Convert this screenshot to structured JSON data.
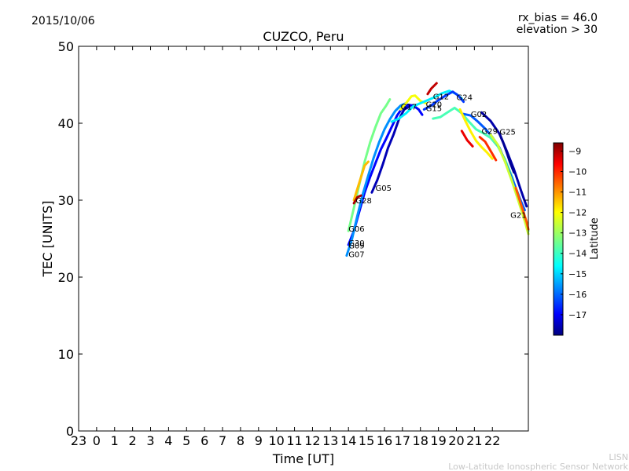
{
  "header": {
    "date": "2015/10/06",
    "rx_bias": "rx_bias = 46.0",
    "elevation": "elevation > 30"
  },
  "credit": {
    "line1": "LISN",
    "line2": "Low-Latitude Ionospheric Sensor Network"
  },
  "chart_data": {
    "type": "scatter",
    "title": "CUZCO, Peru",
    "xlabel": "Time [UT]",
    "ylabel": "TEC [UNITS]",
    "x_tick_labels": [
      "23",
      "0",
      "1",
      "2",
      "3",
      "4",
      "5",
      "6",
      "7",
      "8",
      "9",
      "10",
      "11",
      "12",
      "13",
      "14",
      "15",
      "16",
      "17",
      "18",
      "19",
      "20",
      "21",
      "22"
    ],
    "xlim": [
      -1,
      24
    ],
    "ylim": [
      0,
      50
    ],
    "y_ticks": [
      0,
      10,
      20,
      30,
      40,
      50
    ],
    "grid": false,
    "colorbar": {
      "label": "Latitude",
      "range": [
        -18,
        -8.6
      ],
      "ticks": [
        -9,
        -10,
        -11,
        -12,
        -13,
        -14,
        -15,
        -16,
        -17
      ],
      "colormap": "jet"
    },
    "satellite_labels": [
      {
        "name": "G12",
        "x": 18.7,
        "y": 43.1
      },
      {
        "name": "G24",
        "x": 20.0,
        "y": 43.0
      },
      {
        "name": "G17",
        "x": 16.9,
        "y": 41.8
      },
      {
        "name": "G20",
        "x": 18.3,
        "y": 42.1
      },
      {
        "name": "G15",
        "x": 18.3,
        "y": 41.6
      },
      {
        "name": "G02",
        "x": 20.8,
        "y": 40.8
      },
      {
        "name": "G29",
        "x": 21.4,
        "y": 38.6
      },
      {
        "name": "G25",
        "x": 22.4,
        "y": 38.5
      },
      {
        "name": "G05",
        "x": 15.5,
        "y": 31.2
      },
      {
        "name": "G28",
        "x": 14.4,
        "y": 29.6
      },
      {
        "name": "G06",
        "x": 14.0,
        "y": 25.9
      },
      {
        "name": "G30",
        "x": 14.0,
        "y": 24.1
      },
      {
        "name": "G09",
        "x": 14.0,
        "y": 23.7
      },
      {
        "name": "G07",
        "x": 14.0,
        "y": 22.6
      },
      {
        "name": "G21",
        "x": 23.0,
        "y": 27.7
      }
    ],
    "series": [
      {
        "lat": -16.8,
        "points": [
          [
            14.0,
            24.2
          ],
          [
            14.3,
            26.0
          ],
          [
            14.6,
            28.5
          ],
          [
            14.9,
            31.0
          ],
          [
            15.2,
            33.0
          ],
          [
            15.5,
            34.8
          ],
          [
            15.8,
            36.6
          ],
          [
            16.1,
            38.0
          ],
          [
            16.4,
            39.5
          ],
          [
            16.7,
            41.0
          ],
          [
            17.0,
            42.0
          ],
          [
            17.3,
            42.4
          ],
          [
            17.6,
            42.3
          ],
          [
            17.9,
            41.8
          ],
          [
            18.1,
            41.1
          ]
        ]
      },
      {
        "lat": -15.5,
        "points": [
          [
            13.9,
            22.8
          ],
          [
            14.2,
            25.0
          ],
          [
            14.5,
            28.0
          ],
          [
            14.8,
            30.8
          ],
          [
            15.1,
            33.2
          ],
          [
            15.4,
            35.5
          ],
          [
            15.7,
            37.5
          ],
          [
            16.0,
            39.2
          ],
          [
            16.3,
            40.5
          ],
          [
            16.6,
            41.6
          ],
          [
            16.9,
            42.3
          ],
          [
            17.2,
            42.6
          ]
        ]
      },
      {
        "lat": -13.4,
        "points": [
          [
            14.0,
            26.0
          ],
          [
            14.3,
            29.0
          ],
          [
            14.6,
            32.0
          ],
          [
            14.9,
            35.0
          ],
          [
            15.2,
            37.5
          ],
          [
            15.5,
            39.5
          ],
          [
            15.8,
            41.3
          ],
          [
            16.1,
            42.3
          ],
          [
            16.3,
            43.1
          ]
        ]
      },
      {
        "lat": -11.5,
        "points": [
          [
            14.3,
            30.0
          ],
          [
            14.5,
            31.5
          ],
          [
            14.7,
            33.0
          ],
          [
            14.9,
            34.5
          ],
          [
            15.1,
            35.0
          ]
        ]
      },
      {
        "lat": -9.0,
        "points": [
          [
            14.3,
            29.6
          ],
          [
            14.5,
            30.4
          ],
          [
            14.7,
            30.6
          ]
        ]
      },
      {
        "lat": -17.5,
        "points": [
          [
            15.3,
            31.0
          ],
          [
            15.6,
            32.6
          ],
          [
            15.9,
            34.6
          ],
          [
            16.2,
            36.8
          ],
          [
            16.5,
            38.5
          ],
          [
            16.8,
            40.5
          ],
          [
            17.1,
            41.8
          ],
          [
            17.4,
            42.2
          ]
        ]
      },
      {
        "lat": -12.2,
        "points": [
          [
            16.9,
            41.8
          ],
          [
            17.2,
            42.6
          ],
          [
            17.5,
            43.5
          ],
          [
            17.7,
            43.6
          ],
          [
            18.0,
            42.9
          ],
          [
            18.3,
            42.6
          ]
        ]
      },
      {
        "lat": -14.6,
        "points": [
          [
            16.4,
            40.2
          ],
          [
            16.8,
            40.6
          ],
          [
            17.2,
            41.3
          ],
          [
            17.6,
            42.2
          ],
          [
            18.0,
            42.6
          ],
          [
            18.4,
            43.0
          ],
          [
            18.8,
            43.4
          ],
          [
            19.2,
            43.9
          ],
          [
            19.6,
            44.2
          ],
          [
            20.0,
            43.8
          ],
          [
            20.3,
            43.2
          ]
        ]
      },
      {
        "lat": -9.2,
        "points": [
          [
            18.4,
            43.8
          ],
          [
            18.6,
            44.5
          ],
          [
            18.9,
            45.2
          ]
        ]
      },
      {
        "lat": -16.3,
        "points": [
          [
            18.2,
            41.8
          ],
          [
            18.6,
            42.3
          ],
          [
            19.0,
            43.0
          ],
          [
            19.4,
            43.6
          ],
          [
            19.8,
            44.1
          ],
          [
            20.1,
            43.6
          ],
          [
            20.4,
            42.8
          ]
        ]
      },
      {
        "lat": -13.8,
        "points": [
          [
            18.7,
            40.6
          ],
          [
            19.1,
            40.8
          ],
          [
            19.5,
            41.4
          ],
          [
            19.9,
            42.0
          ],
          [
            20.3,
            41.3
          ],
          [
            20.7,
            40.2
          ],
          [
            21.1,
            39.2
          ],
          [
            21.5,
            38.7
          ],
          [
            21.9,
            38.1
          ],
          [
            22.3,
            37.0
          ],
          [
            22.7,
            35.3
          ],
          [
            23.1,
            33.0
          ],
          [
            23.5,
            30.0
          ],
          [
            23.8,
            27.5
          ],
          [
            24.0,
            26.0
          ]
        ]
      },
      {
        "lat": -16.0,
        "points": [
          [
            20.4,
            41.2
          ],
          [
            20.8,
            41.0
          ],
          [
            21.2,
            40.2
          ],
          [
            21.6,
            39.3
          ],
          [
            22.0,
            38.2
          ],
          [
            22.4,
            36.8
          ],
          [
            22.8,
            34.5
          ],
          [
            23.2,
            32.2
          ],
          [
            23.6,
            29.8
          ],
          [
            23.8,
            28.7
          ]
        ]
      },
      {
        "lat": -12.0,
        "points": [
          [
            20.2,
            41.8
          ],
          [
            20.5,
            40.3
          ],
          [
            20.8,
            38.9
          ],
          [
            21.1,
            37.7
          ],
          [
            21.4,
            36.9
          ],
          [
            21.7,
            36.2
          ],
          [
            22.0,
            35.4
          ]
        ]
      },
      {
        "lat": -9.6,
        "points": [
          [
            20.3,
            39.0
          ],
          [
            20.6,
            37.8
          ],
          [
            20.9,
            37.0
          ]
        ]
      },
      {
        "lat": -10.2,
        "points": [
          [
            21.3,
            38.2
          ],
          [
            21.6,
            37.6
          ],
          [
            21.9,
            36.4
          ],
          [
            22.2,
            35.2
          ]
        ]
      },
      {
        "lat": -17.6,
        "points": [
          [
            21.4,
            41.4
          ],
          [
            21.9,
            40.3
          ],
          [
            22.4,
            38.6
          ],
          [
            22.8,
            36.4
          ],
          [
            23.2,
            34.0
          ],
          [
            23.6,
            31.2
          ],
          [
            23.9,
            29.2
          ]
        ]
      },
      {
        "lat": -17.8,
        "points": [
          [
            22.4,
            38.6
          ],
          [
            22.6,
            37.5
          ],
          [
            22.8,
            36.2
          ],
          [
            23.0,
            34.8
          ],
          [
            23.2,
            33.6
          ]
        ]
      },
      {
        "lat": -12.6,
        "points": [
          [
            21.9,
            38.5
          ],
          [
            22.3,
            37.2
          ],
          [
            22.7,
            35.0
          ],
          [
            23.1,
            32.4
          ],
          [
            23.5,
            29.5
          ],
          [
            23.8,
            27.3
          ],
          [
            24.0,
            25.6
          ]
        ]
      },
      {
        "lat": -10.6,
        "points": [
          [
            23.3,
            31.6
          ],
          [
            23.6,
            29.4
          ],
          [
            23.9,
            27.2
          ],
          [
            24.0,
            26.2
          ]
        ]
      }
    ]
  }
}
